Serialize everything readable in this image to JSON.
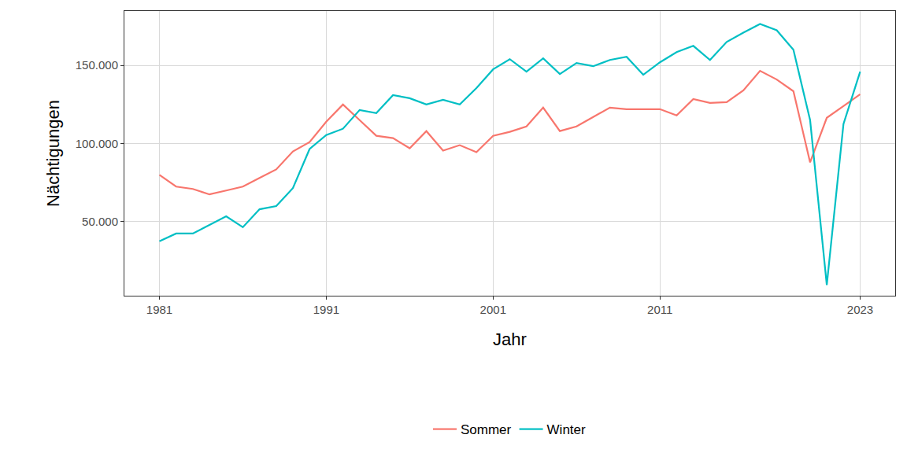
{
  "chart_data": {
    "type": "line",
    "x_label": "Jahr",
    "y_label": "Nächtigungen",
    "x": [
      1981,
      1982,
      1983,
      1984,
      1985,
      1986,
      1987,
      1988,
      1989,
      1990,
      1991,
      1992,
      1993,
      1994,
      1995,
      1996,
      1997,
      1998,
      1999,
      2000,
      2001,
      2002,
      2003,
      2004,
      2005,
      2006,
      2007,
      2008,
      2009,
      2010,
      2011,
      2012,
      2013,
      2014,
      2015,
      2016,
      2017,
      2018,
      2019,
      2020,
      2021,
      2022,
      2023
    ],
    "series": [
      {
        "name": "Sommer",
        "color": "#F8766D",
        "values": [
          80000,
          72500,
          71000,
          67500,
          70000,
          72500,
          78000,
          83500,
          95000,
          101000,
          114000,
          125000,
          115000,
          105000,
          103500,
          97000,
          108000,
          95500,
          99000,
          94500,
          105000,
          107500,
          111000,
          123000,
          108000,
          111000,
          117000,
          123000,
          122000,
          122000,
          122000,
          118000,
          128500,
          126000,
          126500,
          134000,
          146500,
          141000,
          133500,
          88000,
          116500,
          124000,
          131500
        ]
      },
      {
        "name": "Winter",
        "color": "#00BFC4",
        "values": [
          37500,
          42500,
          42500,
          48000,
          53500,
          46500,
          58000,
          60000,
          71500,
          96500,
          105500,
          109500,
          121500,
          119500,
          131000,
          129000,
          125000,
          128000,
          125000,
          135500,
          147500,
          154000,
          146000,
          154500,
          144500,
          151500,
          149500,
          153500,
          155500,
          144000,
          152000,
          158500,
          162500,
          153500,
          165000,
          171000,
          176500,
          172500,
          160000,
          115000,
          9500,
          112500,
          146000
        ]
      }
    ],
    "xlim": [
      1978.9,
      2025.1
    ],
    "xticks": [
      1981,
      1991,
      2001,
      2011,
      2023
    ],
    "ylim": [
      2700,
      184800
    ],
    "yticks": [
      {
        "value": 50000,
        "label": "50.000"
      },
      {
        "value": 100000,
        "label": "100.000"
      },
      {
        "value": 150000,
        "label": "150.000"
      }
    ],
    "grid": true,
    "legend": "bottom"
  }
}
